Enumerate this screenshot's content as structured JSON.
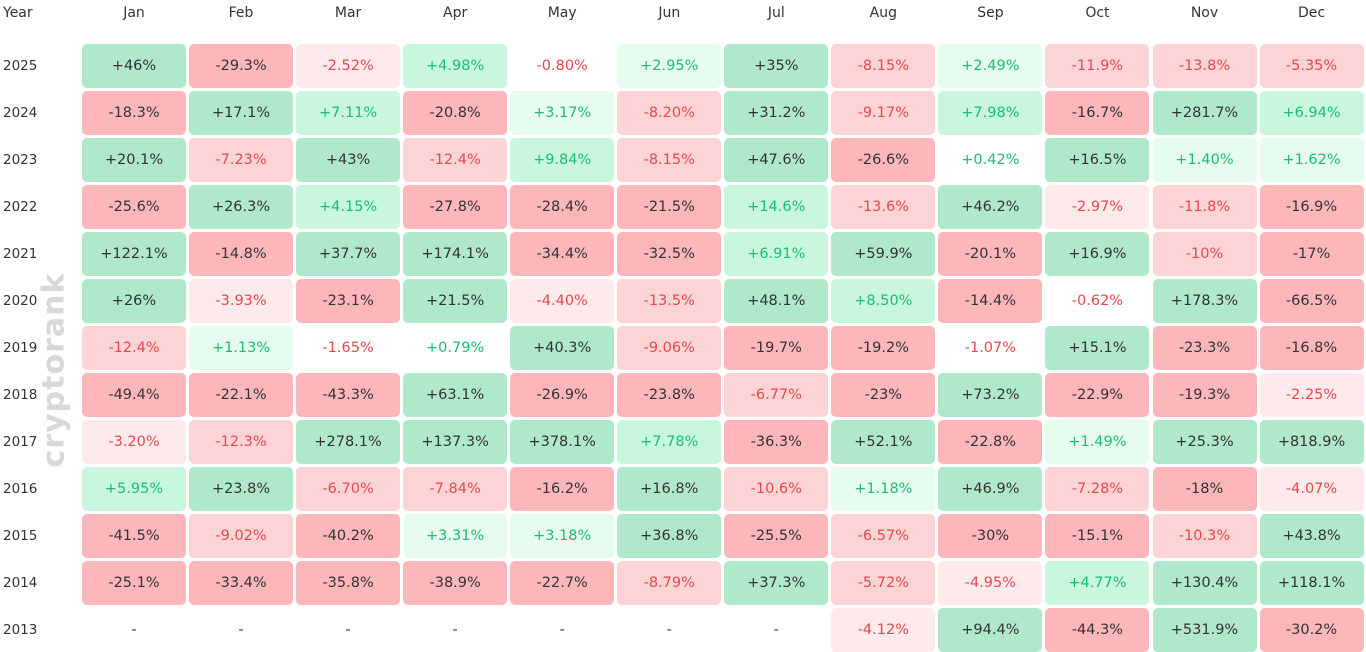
{
  "chart_data": {
    "type": "heatmap",
    "corner_label": "Year",
    "months": [
      "Jan",
      "Feb",
      "Mar",
      "Apr",
      "May",
      "Jun",
      "Jul",
      "Aug",
      "Sep",
      "Oct",
      "Nov",
      "Dec"
    ],
    "rows": [
      {
        "year": "2025",
        "values": [
          "+46%",
          "-29.3%",
          "-2.52%",
          "+4.98%",
          "-0.80%",
          "+2.95%",
          "+35%",
          "-8.15%",
          "+2.49%",
          "-11.9%",
          "-13.8%",
          "-5.35%"
        ]
      },
      {
        "year": "2024",
        "values": [
          "-18.3%",
          "+17.1%",
          "+7.11%",
          "-20.8%",
          "+3.17%",
          "-8.20%",
          "+31.2%",
          "-9.17%",
          "+7.98%",
          "-16.7%",
          "+281.7%",
          "+6.94%"
        ]
      },
      {
        "year": "2023",
        "values": [
          "+20.1%",
          "-7.23%",
          "+43%",
          "-12.4%",
          "+9.84%",
          "-8.15%",
          "+47.6%",
          "-26.6%",
          "+0.42%",
          "+16.5%",
          "+1.40%",
          "+1.62%"
        ]
      },
      {
        "year": "2022",
        "values": [
          "-25.6%",
          "+26.3%",
          "+4.15%",
          "-27.8%",
          "-28.4%",
          "-21.5%",
          "+14.6%",
          "-13.6%",
          "+46.2%",
          "-2.97%",
          "-11.8%",
          "-16.9%"
        ]
      },
      {
        "year": "2021",
        "values": [
          "+122.1%",
          "-14.8%",
          "+37.7%",
          "+174.1%",
          "-34.4%",
          "-32.5%",
          "+6.91%",
          "+59.9%",
          "-20.1%",
          "+16.9%",
          "-10%",
          "-17%"
        ]
      },
      {
        "year": "2020",
        "values": [
          "+26%",
          "-3.93%",
          "-23.1%",
          "+21.5%",
          "-4.40%",
          "-13.5%",
          "+48.1%",
          "+8.50%",
          "-14.4%",
          "-0.62%",
          "+178.3%",
          "-66.5%"
        ]
      },
      {
        "year": "2019",
        "values": [
          "-12.4%",
          "+1.13%",
          "-1.65%",
          "+0.79%",
          "+40.3%",
          "-9.06%",
          "-19.7%",
          "-19.2%",
          "-1.07%",
          "+15.1%",
          "-23.3%",
          "-16.8%"
        ]
      },
      {
        "year": "2018",
        "values": [
          "-49.4%",
          "-22.1%",
          "-43.3%",
          "+63.1%",
          "-26.9%",
          "-23.8%",
          "-6.77%",
          "-23%",
          "+73.2%",
          "-22.9%",
          "-19.3%",
          "-2.25%"
        ]
      },
      {
        "year": "2017",
        "values": [
          "-3.20%",
          "-12.3%",
          "+278.1%",
          "+137.3%",
          "+378.1%",
          "+7.78%",
          "-36.3%",
          "+52.1%",
          "-22.8%",
          "+1.49%",
          "+25.3%",
          "+818.9%"
        ]
      },
      {
        "year": "2016",
        "values": [
          "+5.95%",
          "+23.8%",
          "-6.70%",
          "-7.84%",
          "-16.2%",
          "+16.8%",
          "-10.6%",
          "+1.18%",
          "+46.9%",
          "-7.28%",
          "-18%",
          "-4.07%"
        ]
      },
      {
        "year": "2015",
        "values": [
          "-41.5%",
          "-9.02%",
          "-40.2%",
          "+3.31%",
          "+3.18%",
          "+36.8%",
          "-25.5%",
          "-6.57%",
          "-30%",
          "-15.1%",
          "-10.3%",
          "+43.8%"
        ]
      },
      {
        "year": "2014",
        "values": [
          "-25.1%",
          "-33.4%",
          "-35.8%",
          "-38.9%",
          "-22.7%",
          "-8.79%",
          "+37.3%",
          "-5.72%",
          "-4.95%",
          "+4.77%",
          "+130.4%",
          "+118.1%"
        ]
      },
      {
        "year": "2013",
        "values": [
          "-",
          "-",
          "-",
          "-",
          "-",
          "-",
          "-",
          "-4.12%",
          "+94.4%",
          "-44.3%",
          "+531.9%",
          "-30.2%"
        ]
      }
    ]
  },
  "watermark": "cryptorank",
  "colors": {
    "neg_strong": "#fdb7bb",
    "neg_mid": "#fdd4d6",
    "neg_light": "#feeaeb",
    "pos_strong": "#b0e8cc",
    "pos_mid": "#c9f7de",
    "pos_light": "#e6fcee",
    "text_dark": "#333333",
    "text_neg": "#e5484d",
    "text_pos": "#1bbd72"
  }
}
